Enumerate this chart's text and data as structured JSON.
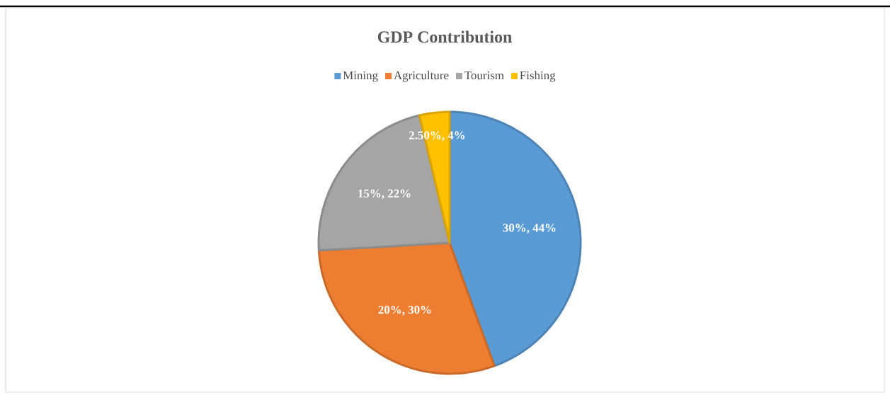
{
  "chart_data": {
    "type": "pie",
    "title": "GDP Contribution",
    "categories": [
      "Mining",
      "Agriculture",
      "Tourism",
      "Fishing"
    ],
    "values": [
      30,
      20,
      15,
      2.5
    ],
    "value_labels": [
      "30%, 44%",
      "20%, 30%",
      "15%, 22%",
      "2.50%, 4%"
    ],
    "colors": [
      "#5b9bd5",
      "#ed7d31",
      "#a5a5a5",
      "#ffc000"
    ],
    "legend": "top"
  }
}
